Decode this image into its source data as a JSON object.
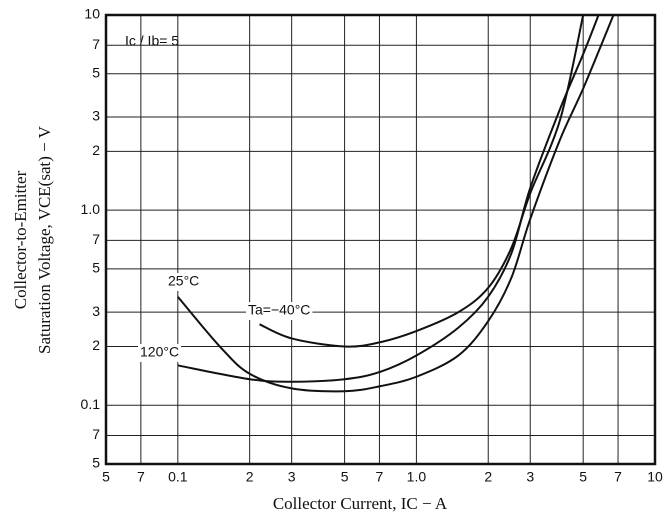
{
  "chart_data": {
    "type": "line",
    "x_label": "Collector Current, IC − A",
    "y_label": [
      "Collector-to-Emitter",
      "Saturation Voltage, VCE(sat) − V"
    ],
    "annotation": "Ic / Ib= 5",
    "xlog": true,
    "ylog": true,
    "grid": true,
    "xlim": [
      0.05,
      10
    ],
    "ylim": [
      0.05,
      10
    ],
    "xticks": [
      {
        "value": 0.05,
        "label": "5"
      },
      {
        "value": 0.07,
        "label": "7"
      },
      0.1,
      {
        "value": 0.2,
        "label": "2"
      },
      {
        "value": 0.3,
        "label": "3"
      },
      {
        "value": 0.5,
        "label": "5"
      },
      {
        "value": 0.7,
        "label": "7"
      },
      {
        "value": 1,
        "label": "1.0"
      },
      2,
      3,
      5,
      7,
      10
    ],
    "yticks": [
      10,
      7,
      5,
      3,
      2,
      {
        "value": 1,
        "label": "1.0"
      },
      {
        "value": 0.7,
        "label": "7"
      },
      {
        "value": 0.5,
        "label": "5"
      },
      {
        "value": 0.3,
        "label": "3"
      },
      {
        "value": 0.2,
        "label": "2"
      },
      0.1,
      {
        "value": 0.07,
        "label": "7"
      },
      {
        "value": 0.05,
        "label": "5"
      }
    ],
    "series": [
      {
        "name": "25°C",
        "color": "#111111",
        "x": [
          0.1,
          0.15,
          0.2,
          0.3,
          0.5,
          0.7,
          1.0,
          1.5,
          2,
          2.5,
          3,
          4,
          5,
          6.7
        ],
        "values": [
          0.36,
          0.2,
          0.145,
          0.122,
          0.118,
          0.125,
          0.14,
          0.18,
          0.27,
          0.45,
          0.9,
          2.3,
          4.2,
          10
        ]
      },
      {
        "name": "Ta=−40°C",
        "color": "#111111",
        "x": [
          0.22,
          0.3,
          0.5,
          0.7,
          1.0,
          1.5,
          2,
          2.5,
          3,
          4,
          5
        ],
        "values": [
          0.26,
          0.22,
          0.2,
          0.21,
          0.24,
          0.3,
          0.4,
          0.64,
          1.22,
          2.9,
          10
        ]
      },
      {
        "name": "120°C",
        "color": "#111111",
        "x": [
          0.1,
          0.2,
          0.3,
          0.5,
          0.7,
          1.0,
          1.5,
          2,
          2.5,
          3,
          4,
          5,
          5.8
        ],
        "values": [
          0.16,
          0.136,
          0.132,
          0.136,
          0.148,
          0.18,
          0.25,
          0.36,
          0.6,
          1.3,
          3.3,
          6.3,
          10
        ]
      }
    ]
  }
}
